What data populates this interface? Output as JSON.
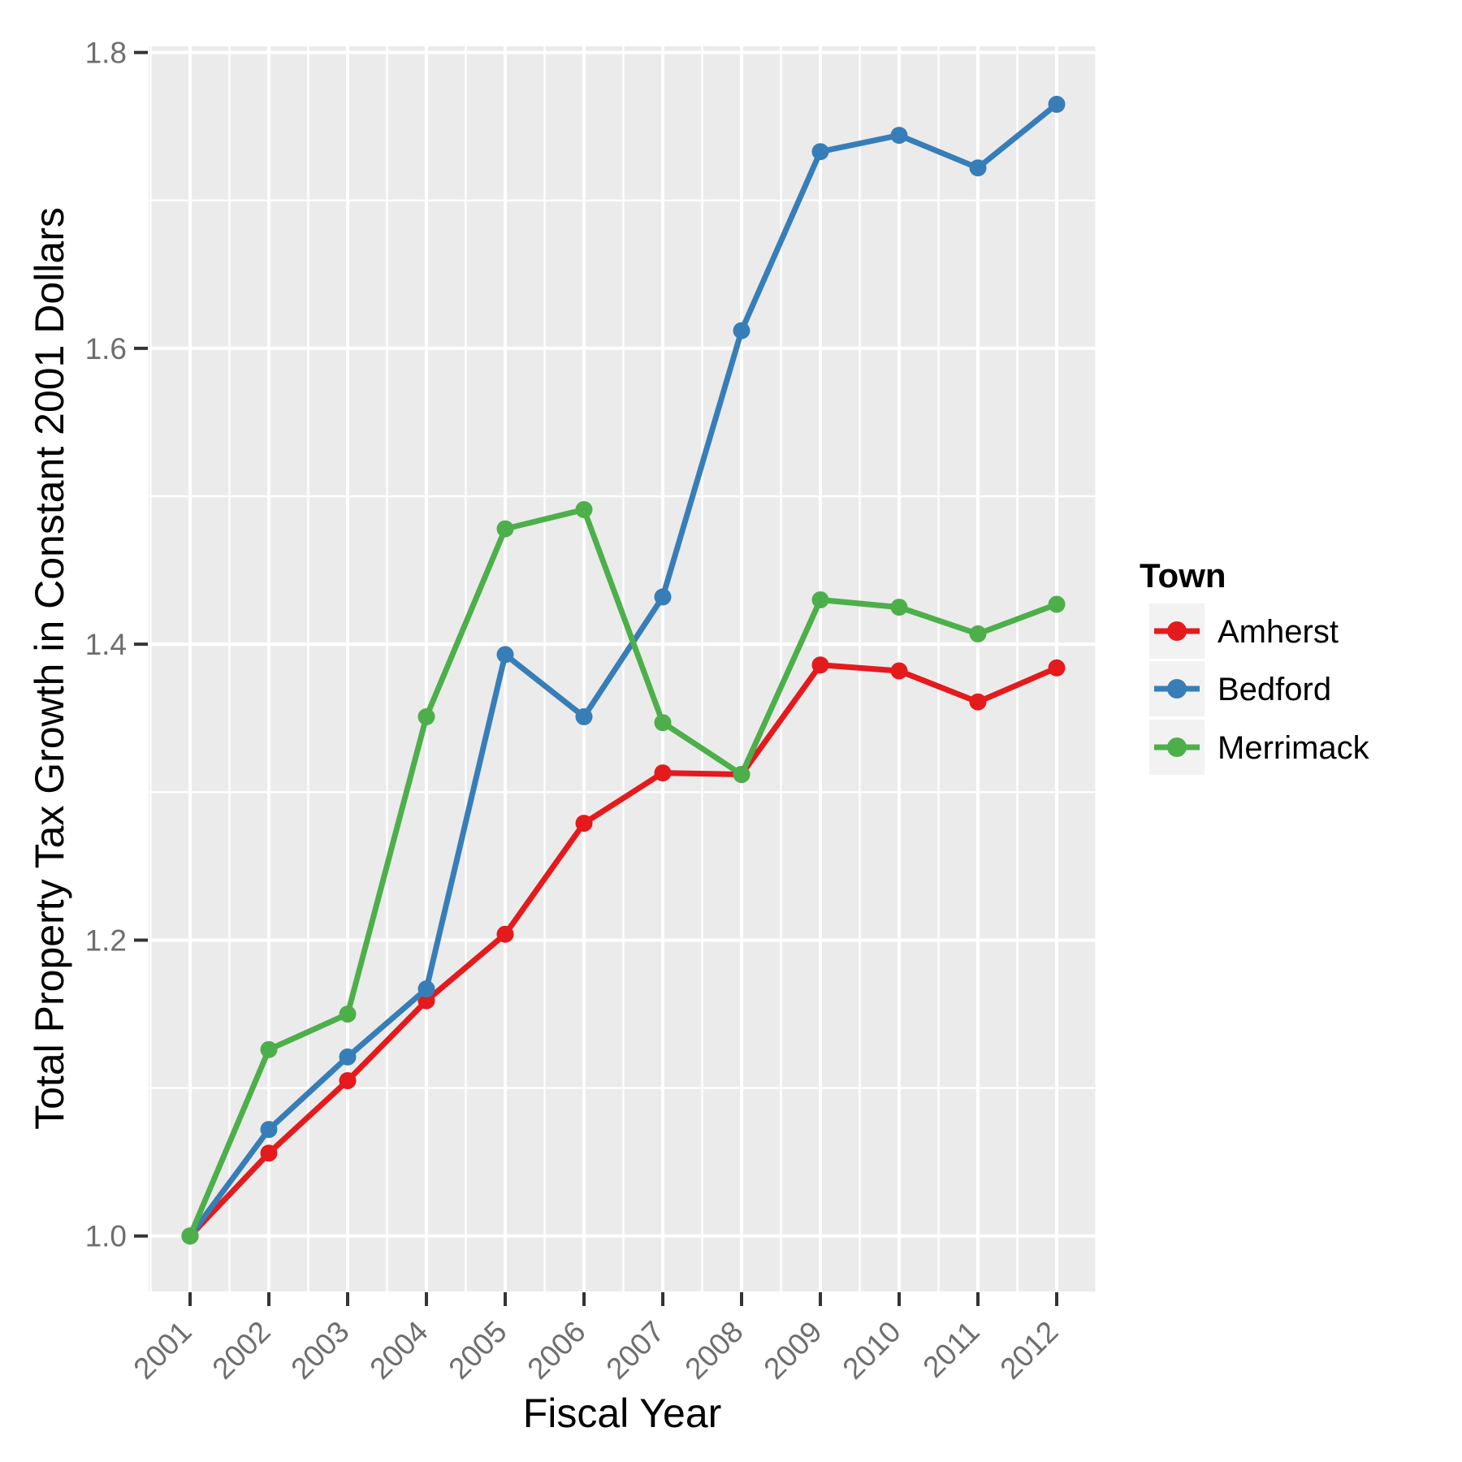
{
  "chart_data": {
    "type": "line",
    "title": "",
    "xlabel": "Fiscal Year",
    "ylabel": "Total Property Tax Growth in Constant 2001 Dollars",
    "legend_title": "Town",
    "legend_position": "right",
    "grid": true,
    "categories": [
      2001,
      2002,
      2003,
      2004,
      2005,
      2006,
      2007,
      2008,
      2009,
      2010,
      2011,
      2012
    ],
    "series": [
      {
        "name": "Amherst",
        "color": "#E41A1C",
        "values": [
          1.0,
          1.056,
          1.105,
          1.159,
          1.204,
          1.279,
          1.313,
          1.312,
          1.386,
          1.382,
          1.361,
          1.384
        ]
      },
      {
        "name": "Bedford",
        "color": "#377EB8",
        "values": [
          1.0,
          1.072,
          1.121,
          1.167,
          1.393,
          1.351,
          1.432,
          1.612,
          1.733,
          1.744,
          1.722,
          1.765
        ]
      },
      {
        "name": "Merrimack",
        "color": "#4DAF4A",
        "values": [
          1.0,
          1.126,
          1.15,
          1.351,
          1.478,
          1.491,
          1.347,
          1.312,
          1.43,
          1.425,
          1.407,
          1.427
        ]
      }
    ],
    "y_ticks": [
      1.0,
      1.2,
      1.4,
      1.6,
      1.8
    ],
    "y_minor_ticks": [
      1.1,
      1.3,
      1.5,
      1.7
    ],
    "ylim": [
      0.9625,
      1.8042
    ],
    "xlim": [
      2000.474,
      2012.505
    ],
    "x_tick_rotation_deg": 45,
    "colors": {
      "panel_bg": "#EBEBEB",
      "grid": "#FFFFFF",
      "tick_mark": "#333333",
      "tick_label": "#6E6E6E",
      "axis_title": "#000000",
      "legend_key_bg": "#F2F2F2"
    }
  }
}
